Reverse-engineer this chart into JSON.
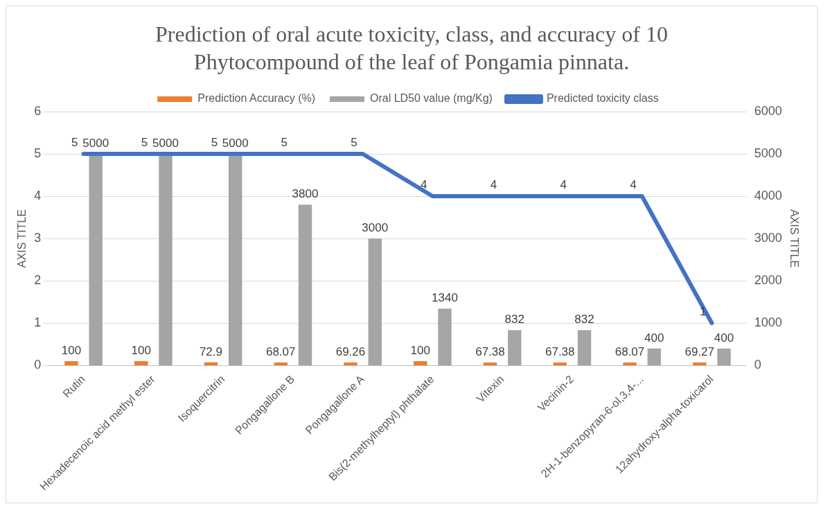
{
  "chart_data": {
    "type": "bar",
    "title": "Prediction of oral acute toxicity, class, and accuracy of 10 Phytocompound of the leaf of Pongamia pinnata.",
    "categories": [
      "Rutin",
      "Hexadecenoic acid methyl ester",
      "Isoquercitrin",
      "Pongagallone B",
      "Pongagallone A",
      "Bis(2-methylheptyl) phthalate",
      "Vitexin",
      "Vecinin-2",
      "2H-1-benzopyran-6-ol,3,4-...",
      "12ahydroxy-alpha-toxicarol"
    ],
    "series": [
      {
        "name": "Prediction Accuracy (%)",
        "axis": "y2",
        "color": "#ed7d31",
        "values": [
          100,
          100,
          72.9,
          68.07,
          69.26,
          100,
          67.38,
          67.38,
          68.07,
          69.27
        ]
      },
      {
        "name": "Oral LD50 value (mg/Kg)",
        "axis": "y2",
        "color": "#a5a5a5",
        "values": [
          5000,
          5000,
          5000,
          3800,
          3000,
          1340,
          832,
          832,
          400,
          400
        ]
      },
      {
        "name": "Predicted toxicity class",
        "type": "line",
        "color": "#4472c4",
        "values": [
          5,
          5,
          5,
          5,
          5,
          4,
          4,
          4,
          4,
          1
        ]
      }
    ],
    "ylabel": "AXIS TITLE",
    "y2label": "AXIS TITLE",
    "ylim": [
      0,
      6
    ],
    "yticks": [
      0,
      1,
      2,
      3,
      4,
      5,
      6
    ],
    "y2lim": [
      0,
      6000
    ],
    "y2ticks": [
      0,
      1000,
      2000,
      3000,
      4000,
      5000,
      6000
    ],
    "data_labels": true,
    "legend": "top",
    "grid": "y",
    "marker": "none"
  }
}
